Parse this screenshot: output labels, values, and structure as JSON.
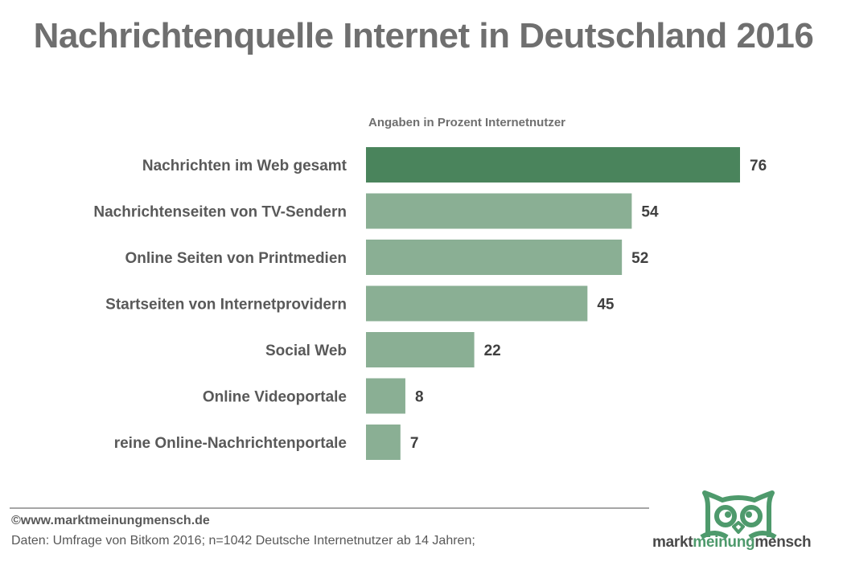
{
  "chart_data": {
    "type": "bar",
    "orientation": "horizontal",
    "title": "Nachrichtenquelle Internet in Deutschland 2016",
    "subtitle": "Angaben in Prozent Internetnutzer",
    "categories": [
      "Nachrichten im Web gesamt",
      "Nachrichtenseiten von TV-Sendern",
      "Online Seiten von Printmedien",
      "Startseiten von Internetprovidern",
      "Social Web",
      "Online Videoportale",
      "reine Online-Nachrichtenportale"
    ],
    "values": [
      76,
      54,
      52,
      45,
      22,
      8,
      7
    ],
    "value_labels": [
      "76",
      "54",
      "52",
      "45",
      "22",
      "8",
      "7"
    ],
    "highlight_index": 0,
    "colors": {
      "highlight": "#4a845c",
      "default": "#8aaf94"
    },
    "xlabel": "",
    "ylabel": "",
    "xlim": [
      0,
      76
    ],
    "grid": false,
    "legend": "none"
  },
  "footer": {
    "copyright": "©www.marktmeinungmensch.de",
    "source": "Daten: Umfrage von Bitkom 2016; n=1042 Deutsche Internetnutzer ab 14 Jahren;"
  },
  "logo": {
    "part1": "markt",
    "part2": "meinung",
    "part3": "mensch",
    "icon": "owl-icon",
    "color": "#4e9a6c"
  }
}
